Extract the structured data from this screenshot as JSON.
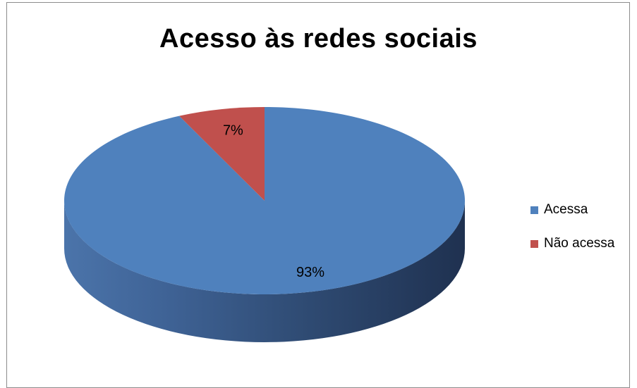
{
  "chart_data": {
    "type": "pie",
    "title": "Acesso às redes sociais",
    "style": "3d",
    "legend_position": "right",
    "slices": [
      {
        "name": "Acessa",
        "value": 93,
        "label": "93%",
        "color": "#4f81bd"
      },
      {
        "name": "Não acessa",
        "value": 7,
        "label": "7%",
        "color": "#c0504d"
      }
    ]
  }
}
